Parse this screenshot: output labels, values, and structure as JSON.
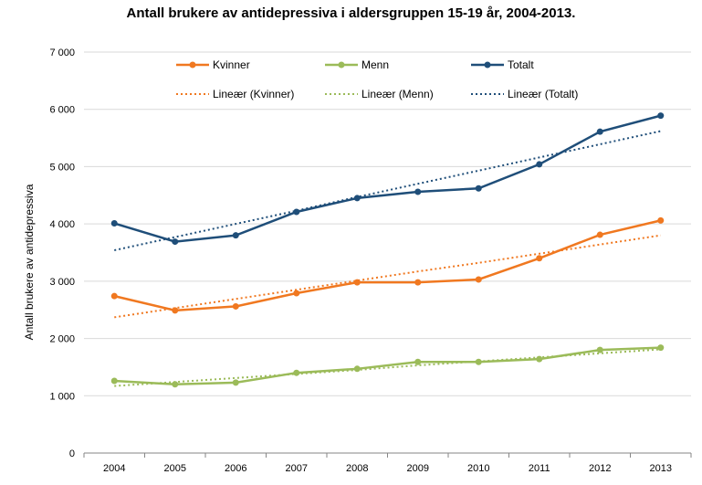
{
  "chart_data": {
    "type": "line",
    "title": "Antall brukere av antidepressiva i aldersgruppen 15-19 år, 2004-2013.",
    "xlabel": "",
    "ylabel": "Antall brukere av antidepressiva",
    "x": [
      "2004",
      "2005",
      "2006",
      "2007",
      "2008",
      "2009",
      "2010",
      "2011",
      "2012",
      "2013"
    ],
    "ylim": [
      0,
      7000
    ],
    "yticks": [
      0,
      1000,
      2000,
      3000,
      4000,
      5000,
      6000,
      7000
    ],
    "ytick_labels": [
      "0",
      "1 000",
      "2 000",
      "3 000",
      "4 000",
      "5 000",
      "6 000",
      "7 000"
    ],
    "grid": true,
    "legend_position": "top",
    "series": [
      {
        "name": "Kvinner",
        "color": "#F07820",
        "style": "solid",
        "values": [
          2740,
          2490,
          2560,
          2790,
          2980,
          2980,
          3030,
          3400,
          3810,
          4060
        ]
      },
      {
        "name": "Menn",
        "color": "#9BBB59",
        "style": "solid",
        "values": [
          1260,
          1200,
          1230,
          1400,
          1470,
          1590,
          1590,
          1640,
          1800,
          1840
        ]
      },
      {
        "name": "Totalt",
        "color": "#1F4E79",
        "style": "solid",
        "values": [
          4010,
          3690,
          3800,
          4210,
          4450,
          4560,
          4620,
          5040,
          5610,
          5890
        ]
      },
      {
        "name": "Lineær (Kvinner)",
        "color": "#F07820",
        "style": "dotted",
        "values": [
          2370,
          2530,
          2690,
          2850,
          3010,
          3170,
          3320,
          3480,
          3640,
          3800
        ]
      },
      {
        "name": "Lineær (Menn)",
        "color": "#9BBB59",
        "style": "dotted",
        "values": [
          1170,
          1240,
          1310,
          1380,
          1450,
          1530,
          1600,
          1670,
          1740,
          1810
        ]
      },
      {
        "name": "Lineær (Totalt)",
        "color": "#1F4E79",
        "style": "dotted",
        "values": [
          3540,
          3770,
          4000,
          4230,
          4470,
          4700,
          4930,
          5160,
          5390,
          5620
        ]
      }
    ]
  }
}
